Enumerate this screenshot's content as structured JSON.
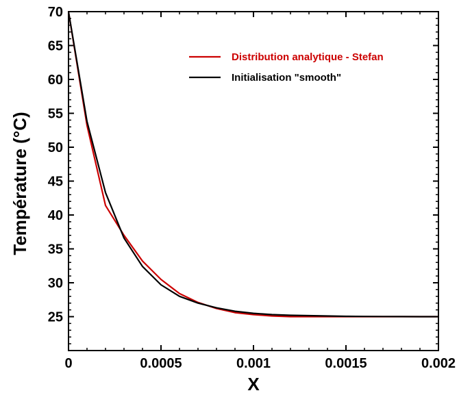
{
  "chart_data": {
    "type": "line",
    "xlabel": "X",
    "ylabel": "Température (°C)",
    "xlim": [
      0,
      0.002
    ],
    "ylim": [
      20,
      70
    ],
    "x_ticks": [
      0,
      0.0005,
      0.001,
      0.0015,
      0.002
    ],
    "x_tick_labels": [
      "0",
      "0.0005",
      "0.001",
      "0.0015",
      "0.002"
    ],
    "y_ticks": [
      25,
      30,
      35,
      40,
      45,
      50,
      55,
      60,
      65,
      70
    ],
    "y_tick_labels": [
      "25",
      "30",
      "35",
      "40",
      "45",
      "50",
      "55",
      "60",
      "65",
      "70"
    ],
    "grid": false,
    "legend_position": "top-right",
    "series": [
      {
        "name": "Distribution analytique - Stefan",
        "color": "#cc0000",
        "x": [
          0,
          0.0001,
          0.0002,
          0.0003,
          0.0004,
          0.0005,
          0.0006,
          0.0007,
          0.0008,
          0.0009,
          0.001,
          0.0011,
          0.0012,
          0.0013,
          0.0014,
          0.0015,
          0.0016,
          0.0017,
          0.0018,
          0.0019,
          0.002
        ],
        "values": [
          70,
          53.2,
          41.4,
          37.0,
          33.2,
          30.5,
          28.4,
          27.1,
          26.2,
          25.6,
          25.3,
          25.1,
          25.0,
          25.0,
          25.0,
          25.0,
          25.0,
          25.0,
          25.0,
          25.0,
          25.0
        ]
      },
      {
        "name": "Initialisation \"smooth\"",
        "color": "#000000",
        "x": [
          0,
          0.0001,
          0.0002,
          0.0003,
          0.0004,
          0.0005,
          0.0006,
          0.0007,
          0.0008,
          0.0009,
          0.001,
          0.0011,
          0.0012,
          0.0013,
          0.0014,
          0.0015,
          0.0016,
          0.0017,
          0.0018,
          0.0019,
          0.002
        ],
        "values": [
          70,
          53.8,
          43.3,
          36.6,
          32.4,
          29.7,
          28.0,
          27.0,
          26.3,
          25.8,
          25.5,
          25.3,
          25.2,
          25.15,
          25.1,
          25.05,
          25.03,
          25.02,
          25.01,
          25.0,
          25.0
        ]
      }
    ]
  }
}
